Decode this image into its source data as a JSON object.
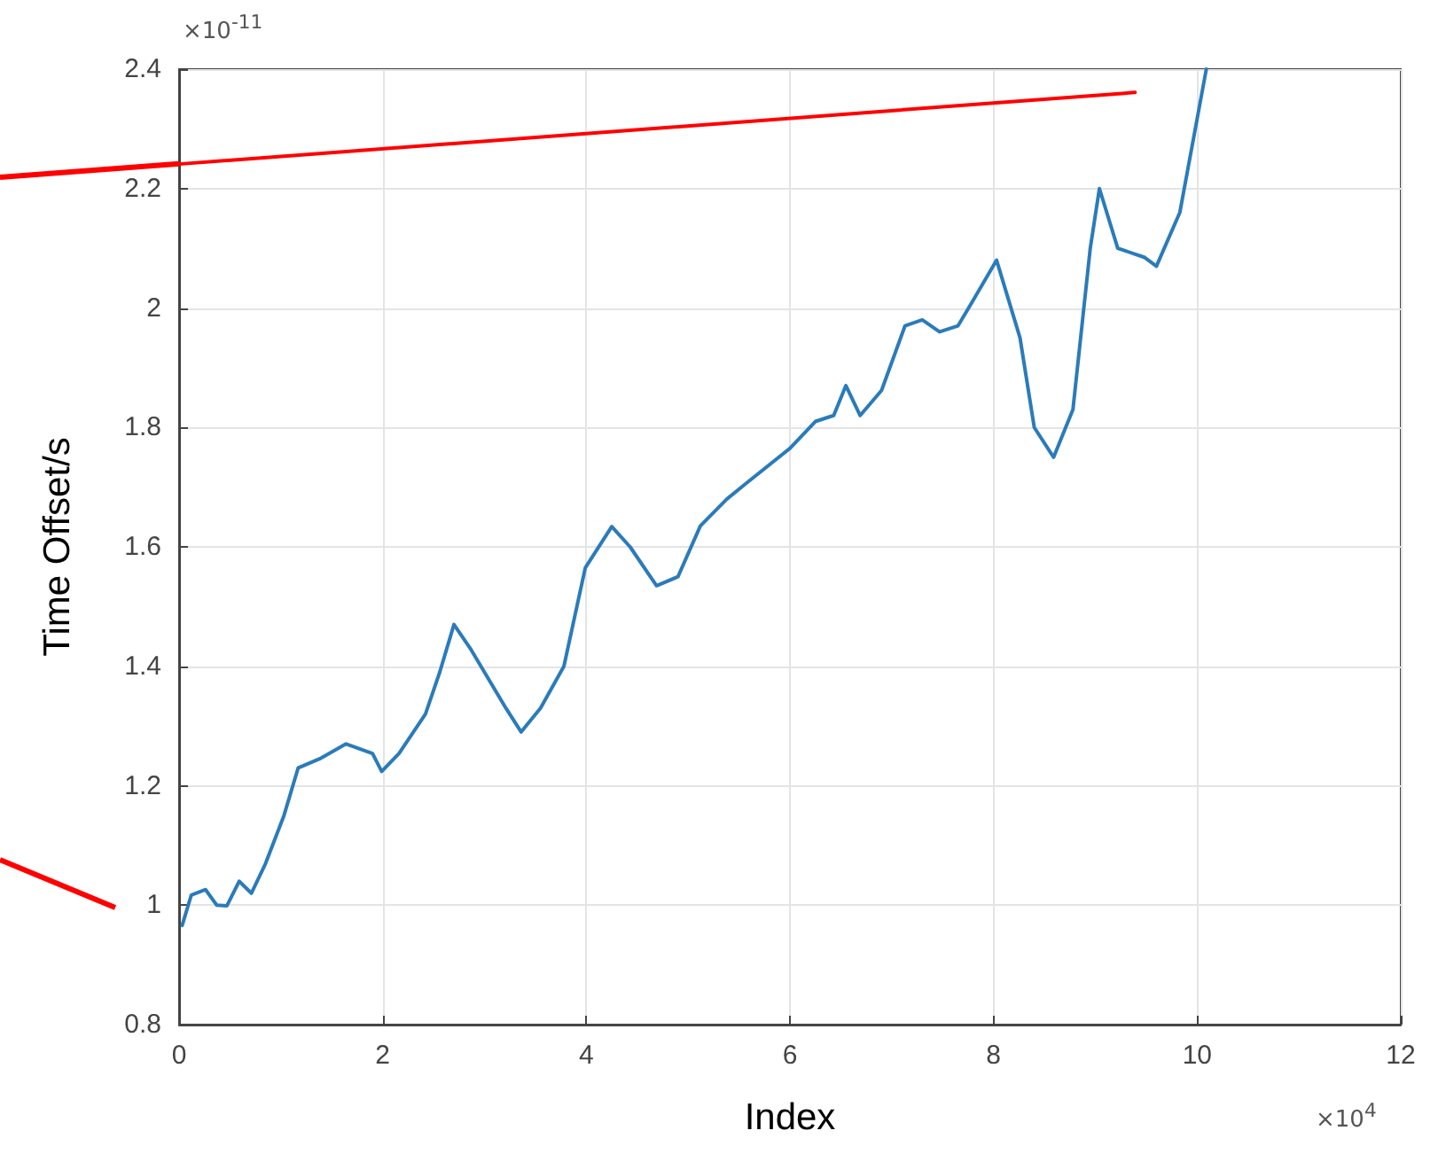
{
  "chart_data": {
    "type": "line",
    "xlabel": "Index",
    "ylabel": "Time Offset/s",
    "annotations": [
      "×10$^{4}$",
      "×10$^{-11}$"
    ],
    "xlim": [
      0,
      12
    ],
    "xticks": [
      0,
      2,
      4,
      6,
      8,
      10,
      12
    ],
    "ylim": [
      0.8,
      2.4
    ],
    "yticks": [
      0.8,
      1,
      1.2,
      1.4,
      1.6,
      1.8,
      2,
      2.2,
      2.4
    ],
    "grid": true,
    "marker": "none",
    "line_style": "solid",
    "series": [
      {
        "color": "#2b7bba",
        "x": [
          0.03,
          0.12,
          0.26,
          0.37,
          0.47,
          0.59,
          0.71,
          0.85,
          1.03,
          1.17,
          1.38,
          1.64,
          1.9,
          1.99,
          2.16,
          2.42,
          2.56,
          2.7,
          2.86,
          3.21,
          3.36,
          3.55,
          3.78,
          3.99,
          4.25,
          4.43,
          4.69,
          4.9,
          5.12,
          5.38,
          5.56,
          6.0,
          6.25,
          6.43,
          6.55,
          6.69,
          6.9,
          7.13,
          7.3,
          7.47,
          7.65,
          7.79,
          8.03,
          8.26,
          8.4,
          8.59,
          8.78,
          8.95,
          9.04,
          9.22,
          9.48,
          9.6,
          9.83,
          10.09
        ],
        "values": [
          0.966,
          1.017,
          1.026,
          1.0,
          0.999,
          1.04,
          1.02,
          1.07,
          1.15,
          1.23,
          1.245,
          1.27,
          1.254,
          1.224,
          1.254,
          1.32,
          1.39,
          1.47,
          1.43,
          1.33,
          1.29,
          1.33,
          1.4,
          1.565,
          1.634,
          1.6,
          1.535,
          1.55,
          1.635,
          1.68,
          1.705,
          1.765,
          1.81,
          1.82,
          1.87,
          1.82,
          1.862,
          1.97,
          1.98,
          1.96,
          1.97,
          2.01,
          2.08,
          1.95,
          1.8,
          1.75,
          1.83,
          2.1,
          2.2,
          2.1,
          2.085,
          2.07,
          2.16,
          2.4
        ]
      },
      {
        "color": "#ff0000",
        "x": [
          0,
          9.39
        ],
        "values": [
          2.241,
          2.361
        ]
      }
    ]
  }
}
